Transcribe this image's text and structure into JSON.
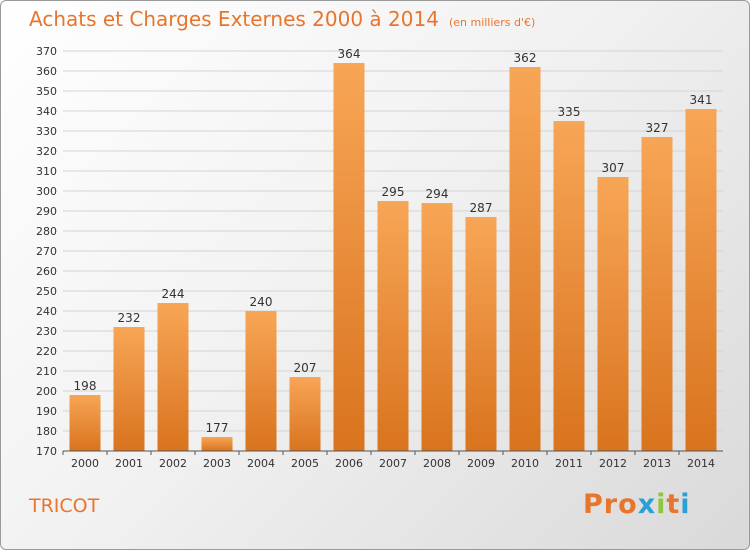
{
  "header": {
    "title": "Achats et Charges Externes 2000 à 2014",
    "subtitle": "(en milliers d'€)"
  },
  "footer": {
    "commune": "TRICOT",
    "logo_letters": [
      "P",
      "r",
      "o",
      "x",
      "i",
      "t",
      "i"
    ]
  },
  "colors": {
    "bar_top": "#f7a656",
    "bar_bottom": "#d9731e",
    "text_accent": "#e8752b",
    "logo": [
      "#e8752b",
      "#e8752b",
      "#e8752b",
      "#2a9fd8",
      "#8dc63f",
      "#e8752b",
      "#2a9fd8"
    ]
  },
  "chart_data": {
    "type": "bar",
    "title": "Achats et Charges Externes 2000 à 2014",
    "categories": [
      "2000",
      "2001",
      "2002",
      "2003",
      "2004",
      "2005",
      "2006",
      "2007",
      "2008",
      "2009",
      "2010",
      "2011",
      "2012",
      "2013",
      "2014"
    ],
    "values": [
      198,
      232,
      244,
      177,
      240,
      207,
      364,
      295,
      294,
      287,
      362,
      335,
      307,
      327,
      341
    ],
    "ylim": [
      170,
      370
    ],
    "yticks": [
      170,
      180,
      190,
      200,
      210,
      220,
      230,
      240,
      250,
      260,
      270,
      280,
      290,
      300,
      310,
      320,
      330,
      340,
      350,
      360,
      370
    ],
    "grid": true,
    "xlabel": "",
    "ylabel": ""
  }
}
